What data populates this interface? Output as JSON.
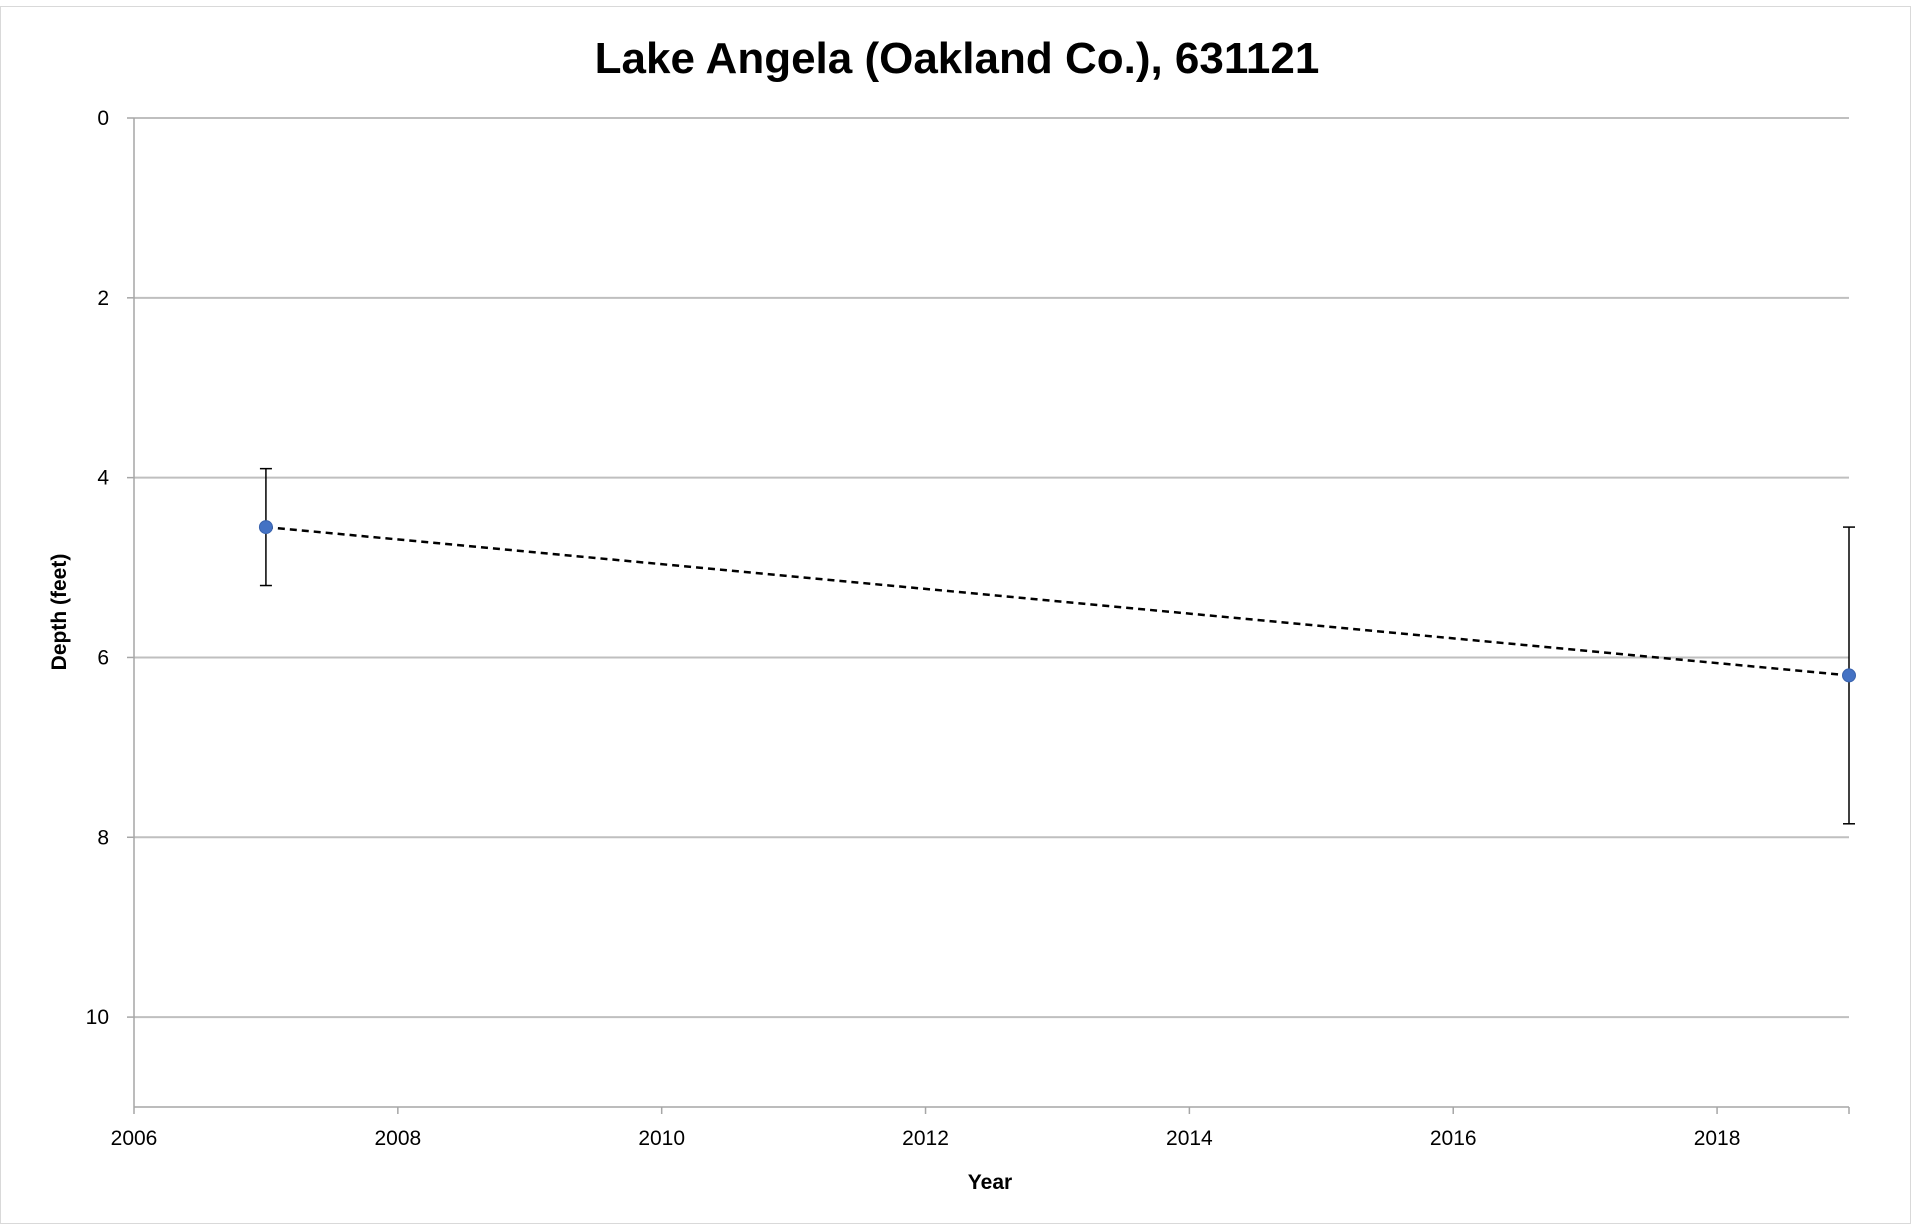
{
  "chart_data": {
    "type": "scatter",
    "title": "Lake Angela (Oakland Co.), 631121",
    "xlabel": "Year",
    "ylabel": "Depth (feet)",
    "xlim": [
      2006,
      2019
    ],
    "ylim": [
      0,
      11
    ],
    "y_reversed": true,
    "xticks": [
      2006,
      2008,
      2010,
      2012,
      2014,
      2016,
      2018
    ],
    "yticks": [
      0,
      2,
      4,
      6,
      8,
      10
    ],
    "grid": "horizontal",
    "legend": "none",
    "series": [
      {
        "points": [
          {
            "x": 2007,
            "y": 4.55,
            "err_low": 0.65,
            "err_high": 0.65
          },
          {
            "x": 2019,
            "y": 6.2,
            "err_low": 1.65,
            "err_high": 1.65
          }
        ],
        "color": "#4472c4",
        "trendline": "linear"
      }
    ]
  }
}
